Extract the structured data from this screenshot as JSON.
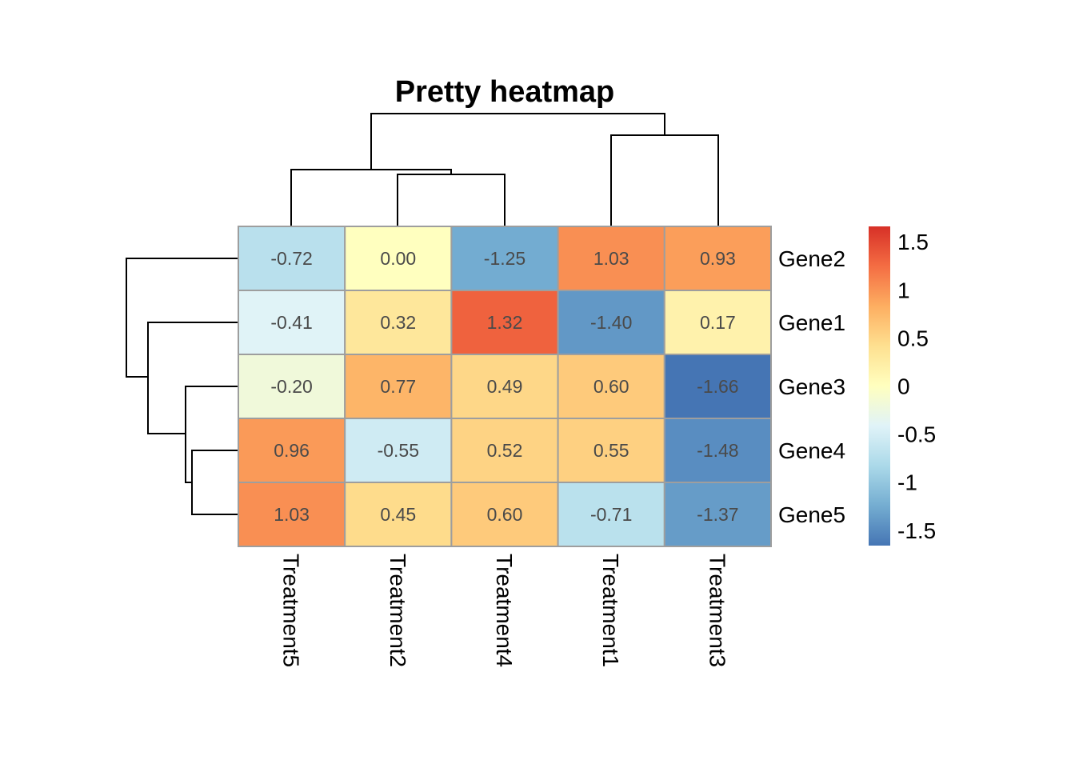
{
  "chart_data": {
    "type": "heatmap",
    "title": "Pretty heatmap",
    "rows": [
      "Gene2",
      "Gene1",
      "Gene3",
      "Gene4",
      "Gene5"
    ],
    "columns": [
      "Treatment5",
      "Treatment2",
      "Treatment4",
      "Treatment1",
      "Treatment3"
    ],
    "values": [
      [
        -0.72,
        0.0,
        -1.25,
        1.03,
        0.93
      ],
      [
        -0.41,
        0.32,
        1.32,
        -1.4,
        0.17
      ],
      [
        -0.2,
        0.77,
        0.49,
        0.6,
        -1.66
      ],
      [
        0.96,
        -0.55,
        0.52,
        0.55,
        -1.48
      ],
      [
        1.03,
        0.45,
        0.6,
        -0.71,
        -1.37
      ]
    ],
    "value_labels": [
      [
        "-0.72",
        "0.00",
        "-1.25",
        "1.03",
        "0.93"
      ],
      [
        "-0.41",
        "0.32",
        "1.32",
        "-1.40",
        "0.17"
      ],
      [
        "-0.20",
        "0.77",
        "0.49",
        "0.60",
        "-1.66"
      ],
      [
        "0.96",
        "-0.55",
        "0.52",
        "0.55",
        "-1.48"
      ],
      [
        "1.03",
        "0.45",
        "0.60",
        "-0.71",
        "-1.37"
      ]
    ],
    "legend": {
      "placement": "right",
      "range": [
        -1.66,
        1.66
      ],
      "ticks": [
        {
          "value": 1.5,
          "label": "1.5"
        },
        {
          "value": 1,
          "label": "1"
        },
        {
          "value": 0.5,
          "label": "0.5"
        },
        {
          "value": 0,
          "label": "0"
        },
        {
          "value": -0.5,
          "label": "-0.5"
        },
        {
          "value": -1,
          "label": "-1"
        },
        {
          "value": -1.5,
          "label": "-1.5"
        }
      ]
    },
    "colors": {
      "low": "#4575b4",
      "mid": "#ffffbf",
      "high": "#d73027",
      "cell_border": "#9e9e9e"
    },
    "row_dendrogram": true,
    "column_dendrogram": true
  }
}
